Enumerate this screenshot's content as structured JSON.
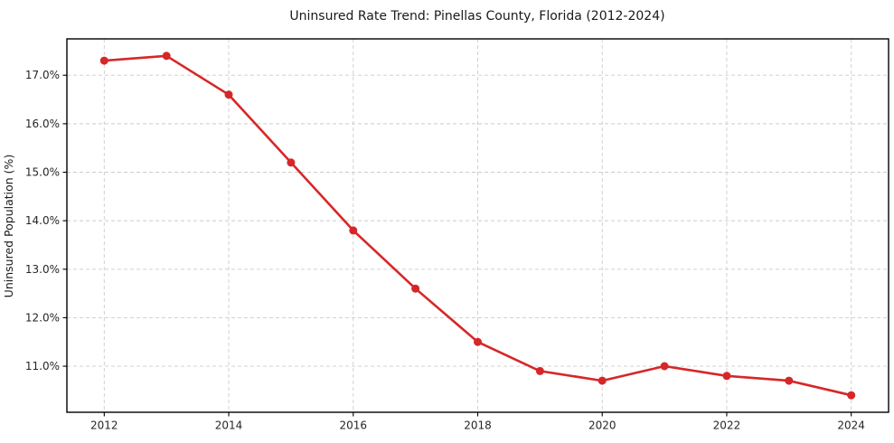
{
  "chart_data": {
    "type": "line",
    "title": "Uninsured Rate Trend: Pinellas County, Florida (2012-2024)",
    "xlabel": "",
    "ylabel": "Uninsured Population (%)",
    "x": [
      2012,
      2013,
      2014,
      2015,
      2016,
      2017,
      2018,
      2019,
      2020,
      2021,
      2022,
      2023,
      2024
    ],
    "series": [
      {
        "name": "Uninsured Rate",
        "values": [
          17.3,
          17.4,
          16.6,
          15.2,
          13.8,
          12.6,
          11.5,
          10.9,
          10.7,
          11.0,
          10.8,
          10.7,
          10.4
        ],
        "color": "#d62728"
      }
    ],
    "xlim": [
      2011.4,
      2024.6
    ],
    "ylim": [
      10.05,
      17.75
    ],
    "xticks": [
      2012,
      2014,
      2016,
      2018,
      2020,
      2022,
      2024
    ],
    "yticks": [
      11.0,
      12.0,
      13.0,
      14.0,
      15.0,
      16.0,
      17.0
    ],
    "ytick_suffix": "%",
    "ytick_decimals": 1,
    "grid": true,
    "grid_style": "dashed",
    "grid_color": "#cccccc",
    "axis_color": "#000000",
    "background_color": "#ffffff",
    "legend": false,
    "marker": "circle",
    "marker_radius": 4.5,
    "line_width": 2.6
  }
}
